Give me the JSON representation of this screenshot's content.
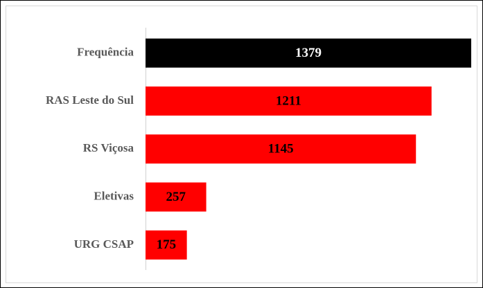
{
  "chart_data": {
    "type": "hbar",
    "categories": [
      "Frequência",
      "RAS Leste do Sul",
      "RS Viçosa",
      "Eletivas",
      "URG CSAP"
    ],
    "values": [
      1379,
      1211,
      1145,
      257,
      175
    ],
    "colors": [
      "#000000",
      "#ff0000",
      "#ff0000",
      "#ff0000",
      "#ff0000"
    ]
  }
}
